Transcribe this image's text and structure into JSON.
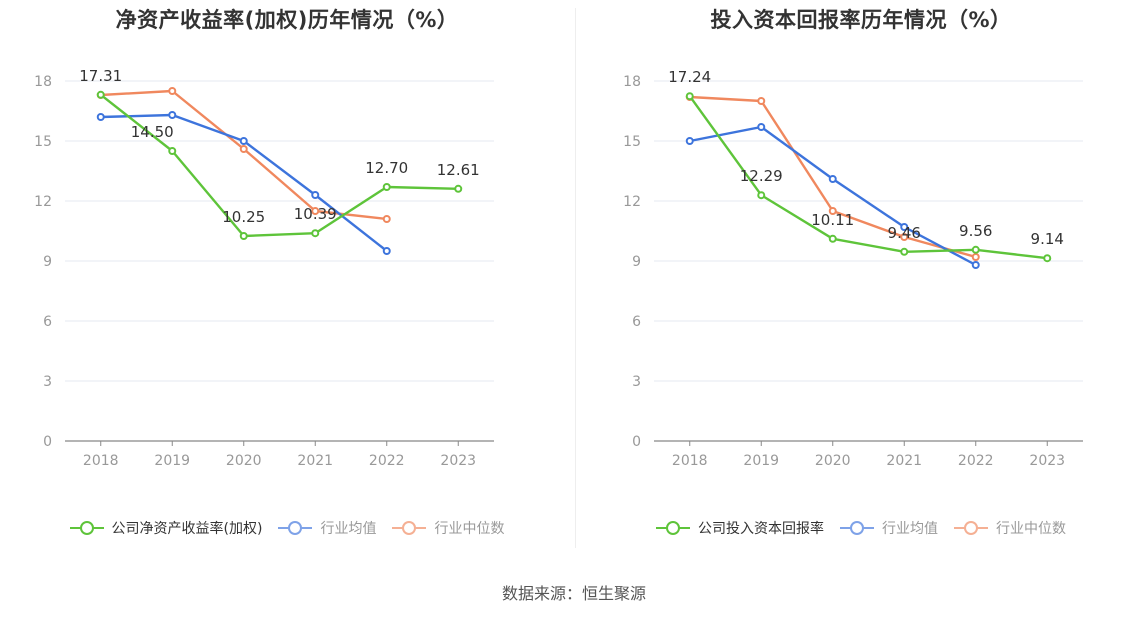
{
  "source_text": "数据来源：恒生聚源",
  "chart_data": [
    {
      "type": "line",
      "title": "净资产收益率(加权)历年情况（%）",
      "categories": [
        "2018",
        "2019",
        "2020",
        "2021",
        "2022",
        "2023"
      ],
      "yticks": [
        "0",
        "3",
        "6",
        "9",
        "12",
        "15",
        "18"
      ],
      "ylim": [
        0,
        18
      ],
      "grid": true,
      "legend_position": "bottom",
      "series": [
        {
          "name": "公司净资产收益率(加权)",
          "color": "#5ec43a",
          "values": [
            17.31,
            14.5,
            10.25,
            10.39,
            12.7,
            12.61
          ],
          "labels": [
            "17.31",
            "14.50",
            "10.25",
            "10.39",
            "12.70",
            "12.61"
          ]
        },
        {
          "name": "行业均值",
          "color": "#3d74dc",
          "values": [
            16.2,
            16.3,
            15.0,
            12.3,
            9.5,
            null
          ]
        },
        {
          "name": "行业中位数",
          "color": "#f0885e",
          "values": [
            17.3,
            17.5,
            14.6,
            11.5,
            11.1,
            null
          ]
        }
      ]
    },
    {
      "type": "line",
      "title": "投入资本回报率历年情况（%）",
      "categories": [
        "2018",
        "2019",
        "2020",
        "2021",
        "2022",
        "2023"
      ],
      "yticks": [
        "0",
        "3",
        "6",
        "9",
        "12",
        "15",
        "18"
      ],
      "ylim": [
        0,
        18
      ],
      "grid": true,
      "legend_position": "bottom",
      "series": [
        {
          "name": "公司投入资本回报率",
          "color": "#5ec43a",
          "values": [
            17.24,
            12.29,
            10.11,
            9.46,
            9.56,
            9.14
          ],
          "labels": [
            "17.24",
            "12.29",
            "10.11",
            "9.46",
            "9.56",
            "9.14"
          ]
        },
        {
          "name": "行业均值",
          "color": "#3d74dc",
          "values": [
            15.0,
            15.7,
            13.1,
            10.7,
            8.8,
            null
          ]
        },
        {
          "name": "行业中位数",
          "color": "#f0885e",
          "values": [
            17.2,
            17.0,
            11.5,
            10.2,
            9.2,
            null
          ]
        }
      ]
    }
  ]
}
